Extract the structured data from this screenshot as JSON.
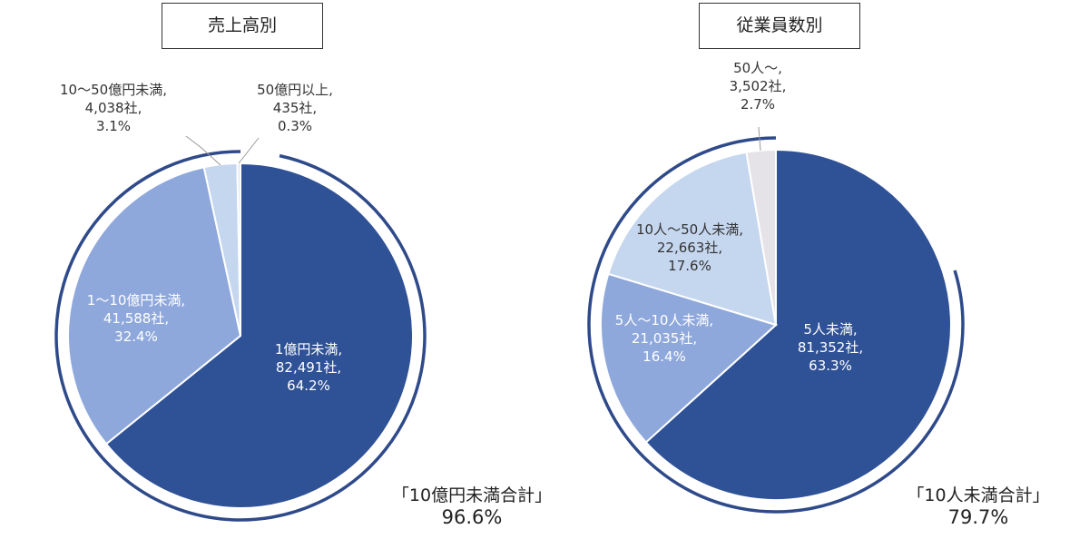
{
  "chart_data": [
    {
      "type": "pie",
      "title": "売上高別",
      "colors": [
        "#2f5196",
        "#8fa8dc",
        "#c5d6ef",
        "#dde6f3"
      ],
      "slices": [
        {
          "label": "1億円未満",
          "count": "82,491社",
          "percent": "64.2%",
          "value": 64.2
        },
        {
          "label": "1～10億円未満",
          "count": "41,588社",
          "percent": "32.4%",
          "value": 32.4
        },
        {
          "label": "10～50億円未満",
          "count": "4,038社",
          "percent": "3.1%",
          "value": 3.1
        },
        {
          "label": "50億円以上",
          "count": "435社",
          "percent": "0.3%",
          "value": 0.3
        }
      ],
      "summary": {
        "label": "「10億円未満合計」",
        "value": "96.6%",
        "fraction": 0.966
      }
    },
    {
      "type": "pie",
      "title": "従業員数別",
      "colors": [
        "#2f5196",
        "#8fa8dc",
        "#c5d6ef",
        "#e6e3e8"
      ],
      "slices": [
        {
          "label": "5人未満",
          "count": "81,352社",
          "percent": "63.3%",
          "value": 63.3
        },
        {
          "label": "5人～10人未満",
          "count": "21,035社",
          "percent": "16.4%",
          "value": 16.4
        },
        {
          "label": "10人～50人未満",
          "count": "22,663社",
          "percent": "17.6%",
          "value": 17.6
        },
        {
          "label": "50人～",
          "count": "3,502社",
          "percent": "2.7%",
          "value": 2.7
        }
      ],
      "summary": {
        "label": "「10人未満合計」",
        "value": "79.7%",
        "fraction": 0.797
      }
    }
  ]
}
